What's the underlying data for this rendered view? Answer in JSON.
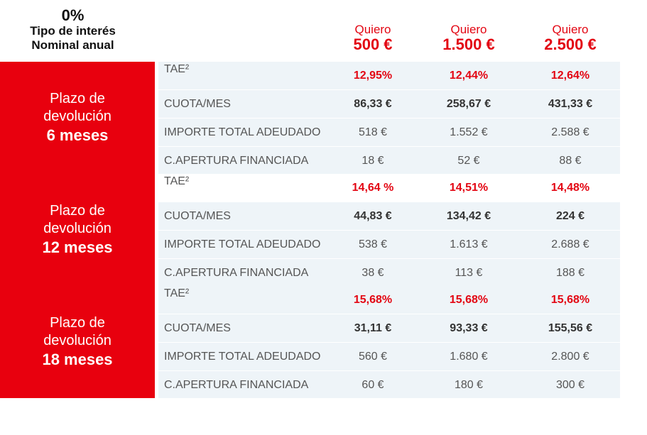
{
  "header": {
    "rate": "0%",
    "line1": "Tipo de interés",
    "line2": "Nominal anual",
    "columns": [
      {
        "quiero": "Quiero",
        "amount": "500 €"
      },
      {
        "quiero": "Quiero",
        "amount": "1.500 €"
      },
      {
        "quiero": "Quiero",
        "amount": "2.500 €"
      }
    ]
  },
  "accent_color": "#e8000e",
  "row_labels": {
    "tae": "TAE²",
    "cuota": "CUOTA/MES",
    "importe": "IMPORTE TOTAL ADEUDADO",
    "apertura": "C.APERTURA FINANCIADA"
  },
  "blocks": [
    {
      "side": {
        "line1": "Plazo de",
        "line2": "devolución",
        "months": "6 meses"
      },
      "tae": [
        "12,95%",
        "12,44%",
        "12,64%"
      ],
      "cuota": [
        "86,33 €",
        "258,67 €",
        "431,33 €"
      ],
      "importe": [
        "518 €",
        "1.552 €",
        "2.588 €"
      ],
      "apertura": [
        "18 €",
        "52 €",
        "88 €"
      ]
    },
    {
      "side": {
        "line1": "Plazo de",
        "line2": "devolución",
        "months": "12 meses"
      },
      "tae": [
        "14,64 %",
        "14,51%",
        "14,48%"
      ],
      "cuota": [
        "44,83 €",
        "134,42 €",
        "224 €"
      ],
      "importe": [
        "538 €",
        "1.613 €",
        "2.688 €"
      ],
      "apertura": [
        "38 €",
        "113 €",
        "188 €"
      ]
    },
    {
      "side": {
        "line1": "Plazo de",
        "line2": "devolución",
        "months": "18 meses"
      },
      "tae": [
        "15,68%",
        "15,68%",
        "15,68%"
      ],
      "cuota": [
        "31,11 €",
        "93,33 €",
        "155,56 €"
      ],
      "importe": [
        "560 €",
        "1.680 €",
        "2.800 €"
      ],
      "apertura": [
        "60 €",
        "180 €",
        "300 €"
      ]
    }
  ]
}
